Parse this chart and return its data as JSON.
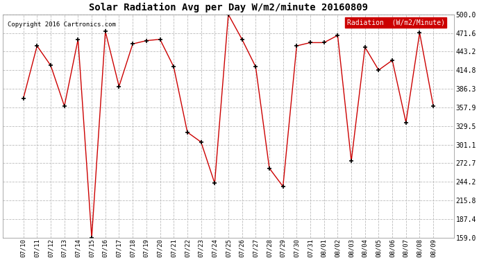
{
  "title": "Solar Radiation Avg per Day W/m2/minute 20160809",
  "copyright": "Copyright 2016 Cartronics.com",
  "legend_label": "Radiation  (W/m2/Minute)",
  "dates": [
    "07/10",
    "07/11",
    "07/12",
    "07/13",
    "07/14",
    "07/15",
    "07/16",
    "07/17",
    "07/18",
    "07/19",
    "07/20",
    "07/21",
    "07/22",
    "07/23",
    "07/24",
    "07/25",
    "07/26",
    "07/27",
    "07/28",
    "07/29",
    "07/30",
    "07/31",
    "08/01",
    "08/02",
    "08/03",
    "08/04",
    "08/05",
    "08/06",
    "08/07",
    "08/08",
    "08/09"
  ],
  "values": [
    372,
    452,
    422,
    360,
    462,
    159,
    474,
    390,
    455,
    460,
    462,
    420,
    320,
    305,
    242,
    500,
    462,
    420,
    265,
    237,
    452,
    457,
    457,
    468,
    276,
    450,
    415,
    430,
    335,
    472,
    360
  ],
  "line_color": "#cc0000",
  "marker_color": "#000000",
  "background_color": "#ffffff",
  "grid_color": "#bbbbbb",
  "legend_bg": "#cc0000",
  "legend_text_color": "#ffffff",
  "ymin": 159.0,
  "ymax": 500.0,
  "yticks": [
    159.0,
    187.4,
    215.8,
    244.2,
    272.7,
    301.1,
    329.5,
    357.9,
    386.3,
    414.8,
    443.2,
    471.6,
    500.0
  ]
}
